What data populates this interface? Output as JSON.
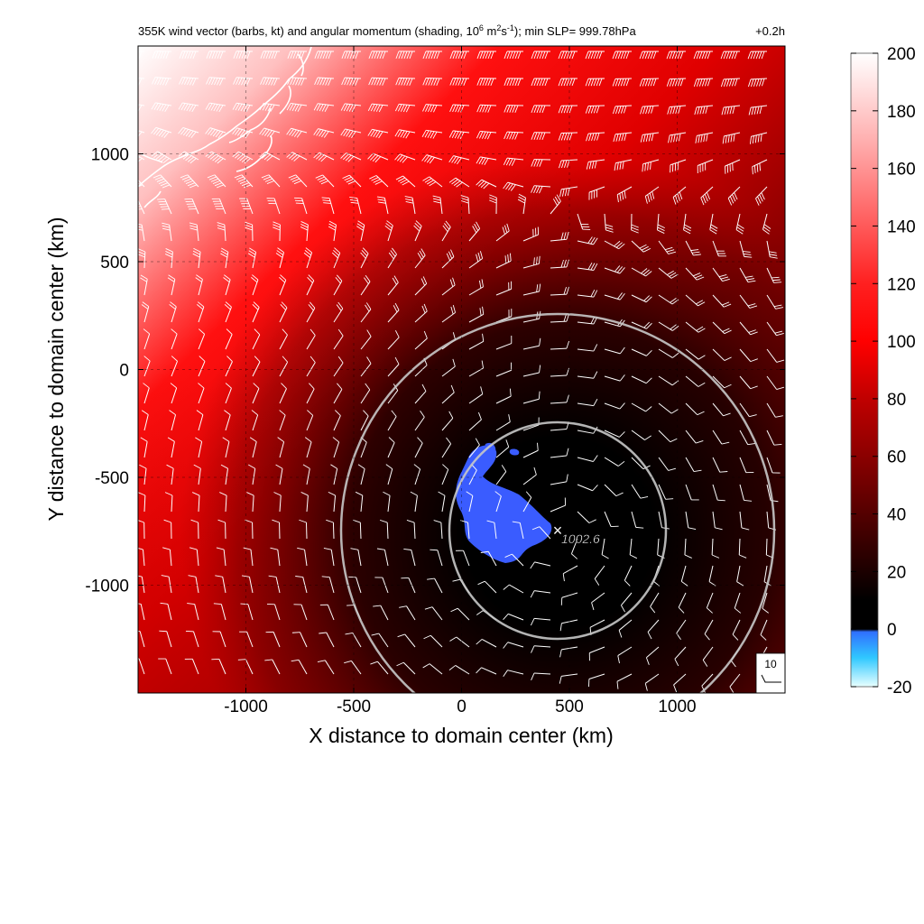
{
  "chart_data": {
    "type": "heatmap",
    "title": {
      "prefix": "355K wind vector (barbs, kt) and angular momentum (shading, 10",
      "exp1": "6",
      "mid1": " m",
      "exp2": "2",
      "mid2": "s",
      "exp3": "-1",
      "suffix": "); min SLP= 999.78hPa"
    },
    "time_label": "+0.2h",
    "xlabel": "X distance to domain center (km)",
    "ylabel": "Y distance to domain center (km)",
    "xlim": [
      -1500,
      1500
    ],
    "ylim": [
      -1500,
      1500
    ],
    "xticks": [
      -1000,
      -500,
      0,
      500,
      1000
    ],
    "yticks": [
      -1000,
      -500,
      0,
      500,
      1000
    ],
    "grid": true,
    "colorbar": {
      "ticks": [
        200,
        180,
        160,
        140,
        120,
        100,
        80,
        60,
        40,
        20,
        0,
        -20
      ],
      "range": [
        -20,
        200
      ],
      "stops": [
        {
          "value": 200,
          "color": "#ffffff"
        },
        {
          "value": 170,
          "color": "#ffb0b0"
        },
        {
          "value": 120,
          "color": "#ff2020"
        },
        {
          "value": 100,
          "color": "#ff0000"
        },
        {
          "value": 80,
          "color": "#c00000"
        },
        {
          "value": 50,
          "color": "#700000"
        },
        {
          "value": 25,
          "color": "#2a0000"
        },
        {
          "value": 10,
          "color": "#000000"
        },
        {
          "value": 0,
          "color": "#000000"
        },
        {
          "value": -1,
          "color": "#3070ff"
        },
        {
          "value": -10,
          "color": "#30c8ff"
        },
        {
          "value": -20,
          "color": "#e8ffff"
        }
      ]
    },
    "center": {
      "x": 450,
      "y": -750,
      "label": "1002.6"
    },
    "circles_radius_km": [
      500,
      1000
    ],
    "reference_barb": {
      "label": "10"
    },
    "colors": {
      "wind_barb": "#ffffff",
      "coastline": "#ffffff",
      "range_circle": "#c8c8c8"
    }
  }
}
